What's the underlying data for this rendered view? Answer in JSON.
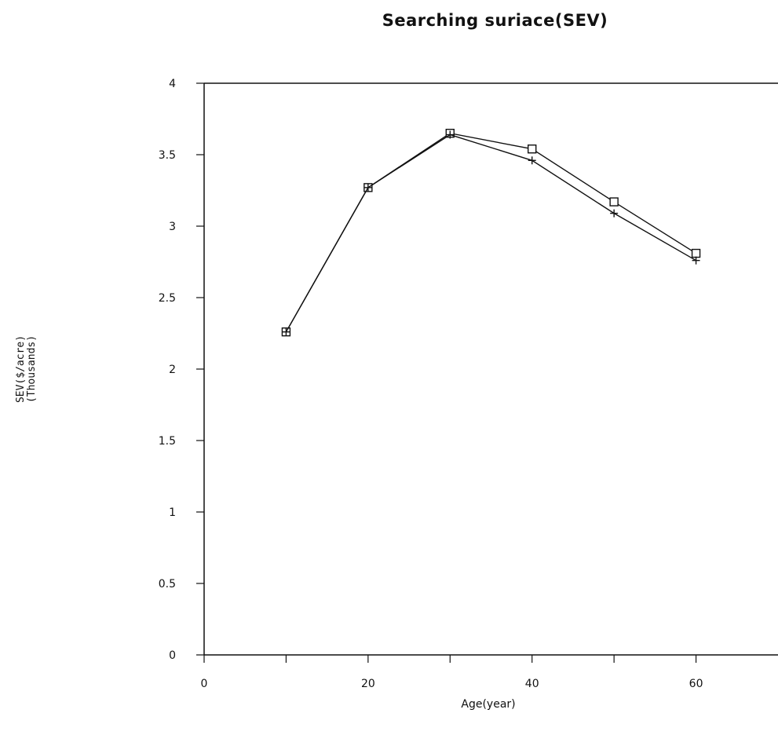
{
  "chart_data": {
    "type": "line",
    "title": "Searching suriace(SEV)",
    "xlabel": "Age(year)",
    "ylabel_lines": [
      "SEV($/acre)",
      "(Thousands)"
    ],
    "xlim": [
      0,
      70
    ],
    "ylim": [
      0,
      4
    ],
    "x_ticks": [
      "0",
      "20",
      "40",
      "60"
    ],
    "x_tick_values": [
      0,
      20,
      40,
      60
    ],
    "y_ticks": [
      "0",
      "0.5",
      "1",
      "1.5",
      "2",
      "2.5",
      "3",
      "3.5",
      "4"
    ],
    "y_tick_values": [
      0,
      0.5,
      1,
      1.5,
      2,
      2.5,
      3,
      3.5,
      4
    ],
    "x": [
      10,
      20,
      30,
      40,
      50,
      60
    ],
    "series": [
      {
        "marker": "square",
        "values": [
          2.26,
          3.27,
          3.65,
          3.54,
          3.17,
          2.81
        ]
      },
      {
        "marker": "plus",
        "values": [
          2.26,
          3.27,
          3.64,
          3.46,
          3.09,
          2.76
        ]
      }
    ],
    "grid": false,
    "legend": "none"
  }
}
